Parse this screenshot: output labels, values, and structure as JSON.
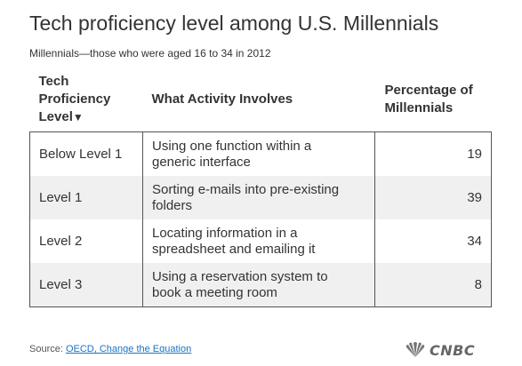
{
  "title": "Tech proficiency level among U.S. Millennials",
  "subtitle": "Millennials—those who were aged 16 to 34 in 2012",
  "source": {
    "prefix": "Source: ",
    "link_text": "OECD, Change the Equation"
  },
  "logo_text": "CNBC",
  "colors": {
    "text": "#333333",
    "row_alt": "#f0f0f0",
    "link": "#1a73c8"
  },
  "chart_data": {
    "type": "table",
    "columns": [
      {
        "line1": "Tech",
        "line2": "Proficiency",
        "line3": "Level",
        "sort_indicator": "▼"
      },
      {
        "line1": "What Activity Involves"
      },
      {
        "line1": "Percentage of",
        "line2": "Millennials"
      }
    ],
    "rows": [
      {
        "level": "Below Level 1",
        "activity_line1": "Using one function within a",
        "activity_line2": "generic interface",
        "percentage": "19"
      },
      {
        "level": "Level 1",
        "activity_line1": "Sorting e-mails into pre-existing",
        "activity_line2": "folders",
        "percentage": "39"
      },
      {
        "level": "Level 2",
        "activity_line1": "Locating information in a",
        "activity_line2": "spreadsheet and emailing it",
        "percentage": "34"
      },
      {
        "level": "Level 3",
        "activity_line1": "Using a reservation system to",
        "activity_line2": "book a meeting room",
        "percentage": "8"
      }
    ]
  }
}
